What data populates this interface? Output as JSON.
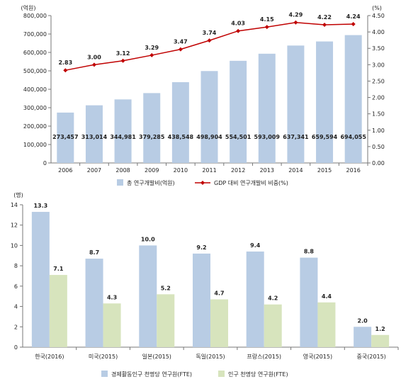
{
  "chart_data": [
    {
      "type": "bar+line",
      "y_unit_left": "(억원)",
      "y_unit_right": "(%)",
      "categories": [
        "2006",
        "2007",
        "2008",
        "2009",
        "2010",
        "2011",
        "2012",
        "2013",
        "2014",
        "2015",
        "2016"
      ],
      "series": [
        {
          "name": "총 연구개발비(억원)",
          "type": "bar",
          "axis": "left",
          "color": "#b8cce4",
          "values": [
            273457,
            313014,
            344981,
            379285,
            438548,
            498904,
            554501,
            593009,
            637341,
            659594,
            694055
          ],
          "labels": [
            "273,457",
            "313,014",
            "344,981",
            "379,285",
            "438,548",
            "498,904",
            "554,501",
            "593,009",
            "637,341",
            "659,594",
            "694,055"
          ]
        },
        {
          "name": "GDP 대비 연구개발비 비중(%)",
          "type": "line",
          "axis": "right",
          "color": "#c00000",
          "values": [
            2.83,
            3.0,
            3.12,
            3.29,
            3.47,
            3.74,
            4.03,
            4.15,
            4.29,
            4.22,
            4.24
          ],
          "labels": [
            "2.83",
            "3.00",
            "3.12",
            "3.29",
            "3.47",
            "3.74",
            "4.03",
            "4.15",
            "4.29",
            "4.22",
            "4.24"
          ]
        }
      ],
      "ylim_left": [
        0,
        800000
      ],
      "ylim_right": [
        0,
        4.5
      ],
      "yticks_left": [
        "0",
        "100,000",
        "200,000",
        "300,000",
        "400,000",
        "500,000",
        "600,000",
        "700,000",
        "800,000"
      ],
      "yticks_right": [
        "0.00",
        "0.50",
        "1.00",
        "1.50",
        "2.00",
        "2.50",
        "3.00",
        "3.50",
        "4.00",
        "4.50"
      ],
      "grid": false,
      "legend_position": "bottom"
    },
    {
      "type": "bar",
      "y_unit": "(명)",
      "categories": [
        "한국(2016)",
        "미국(2015)",
        "일본(2015)",
        "독일(2015)",
        "프랑스(2015)",
        "영국(2015)",
        "중국(2015)"
      ],
      "series": [
        {
          "name": "경제활동인구 천명당 연구원(FTE)",
          "color": "#b8cce4",
          "values": [
            13.3,
            8.7,
            10.0,
            9.2,
            9.4,
            8.8,
            2.0
          ],
          "labels": [
            "13.3",
            "8.7",
            "10.0",
            "9.2",
            "9.4",
            "8.8",
            "2.0"
          ]
        },
        {
          "name": "인구 천명당 연구원(FTE)",
          "color": "#d7e4bd",
          "values": [
            7.1,
            4.3,
            5.2,
            4.7,
            4.2,
            4.4,
            1.2
          ],
          "labels": [
            "7.1",
            "4.3",
            "5.2",
            "4.7",
            "4.2",
            "4.4",
            "1.2"
          ]
        }
      ],
      "ylim": [
        0,
        14
      ],
      "yticks": [
        "0",
        "2",
        "4",
        "6",
        "8",
        "10",
        "12",
        "14"
      ],
      "grid": false,
      "legend_position": "bottom"
    }
  ]
}
